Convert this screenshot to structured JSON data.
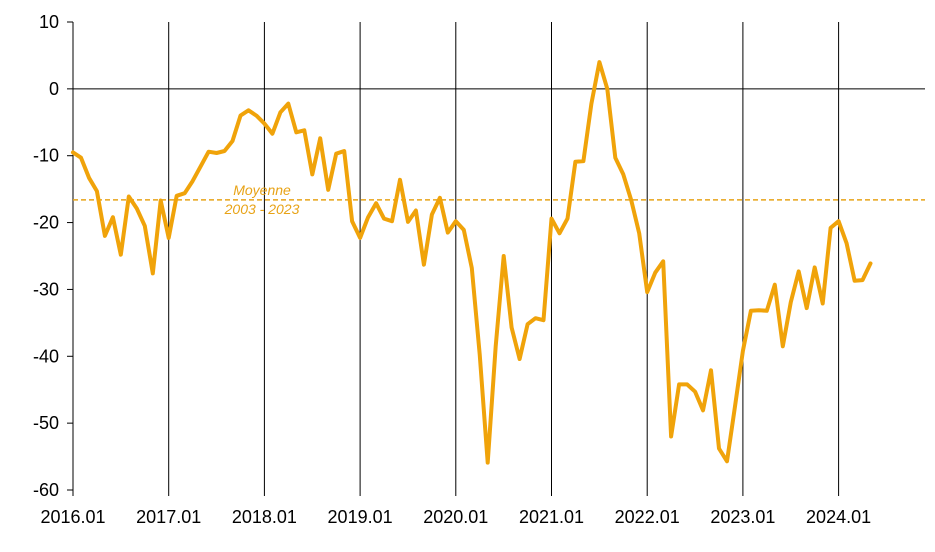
{
  "chart_data": {
    "type": "line",
    "title": "",
    "xlabel": "",
    "ylabel": "",
    "ylim": [
      -60,
      10
    ],
    "yticks": [
      10,
      0,
      -10,
      -20,
      -30,
      -40,
      -50,
      -60
    ],
    "xticks": [
      "2016.01",
      "2017.01",
      "2018.01",
      "2019.01",
      "2020.01",
      "2021.01",
      "2022.01",
      "2023.01",
      "2024.01"
    ],
    "grid": "vertical lines at each January",
    "colors": {
      "series": "#F0A30A",
      "reference": "#E8A317",
      "axis": "#000000"
    },
    "reference_line": {
      "value": -16.6,
      "label_line1": "Moyenne",
      "label_line2": "2003 - 2023"
    },
    "series": [
      {
        "start": "2016.01",
        "frequency": "monthly",
        "values": [
          -9.5,
          -10.3,
          -13.3,
          -15.3,
          -22.0,
          -19.2,
          -24.8,
          -16.1,
          -17.9,
          -20.5,
          -27.6,
          -16.7,
          -22.3,
          -16.0,
          -15.6,
          -13.8,
          -11.6,
          -9.4,
          -9.6,
          -9.3,
          -7.8,
          -4.0,
          -3.2,
          -4.0,
          -5.2,
          -6.7,
          -3.5,
          -2.2,
          -6.5,
          -6.2,
          -12.8,
          -7.4,
          -15.1,
          -9.7,
          -9.3,
          -19.8,
          -22.3,
          -19.2,
          -17.1,
          -19.4,
          -19.8,
          -13.6,
          -19.9,
          -18.2,
          -26.3,
          -18.8,
          -16.3,
          -21.5,
          -19.8,
          -21.1,
          -26.8,
          -39.7,
          -55.9,
          -38.5,
          -25.0,
          -35.7,
          -40.4,
          -35.2,
          -34.3,
          -34.6,
          -19.4,
          -21.6,
          -19.4,
          -10.9,
          -10.8,
          -2.2,
          4.0,
          0.0,
          -10.3,
          -12.8,
          -16.7,
          -21.6,
          -30.4,
          -27.5,
          -25.8,
          -52.0,
          -44.2,
          -44.2,
          -45.3,
          -48.1,
          -42.1,
          -53.8,
          -55.7,
          -47.6,
          -39.2,
          -33.2,
          -33.1,
          -33.2,
          -29.3,
          -38.5,
          -31.9,
          -27.3,
          -32.8,
          -26.7,
          -32.1,
          -20.8,
          -19.8,
          -23.1,
          -28.7,
          -28.6,
          -26.1
        ]
      }
    ]
  }
}
